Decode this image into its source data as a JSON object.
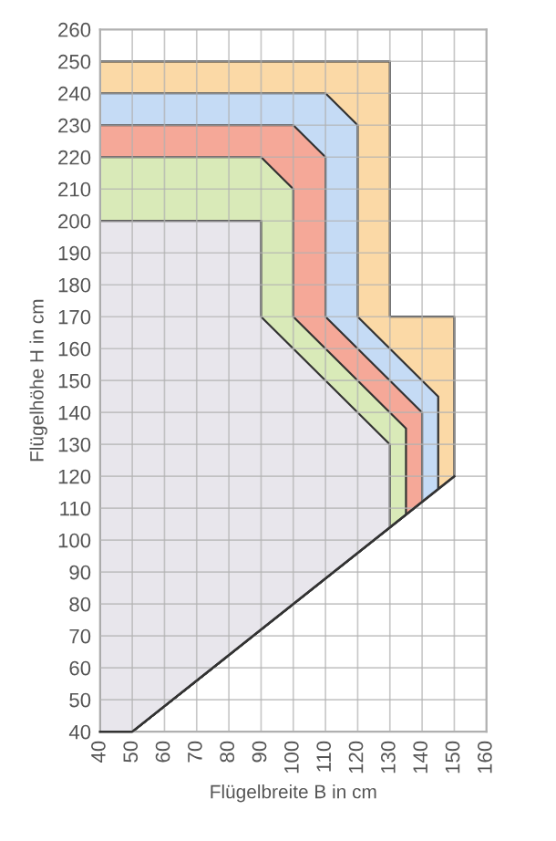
{
  "chart_data": {
    "type": "area",
    "xlabel": "Flügelbreite B in cm",
    "ylabel": "Flügelhöhe H in cm",
    "xlim": [
      40,
      160
    ],
    "xticks": [
      40,
      50,
      60,
      70,
      80,
      90,
      100,
      110,
      120,
      130,
      140,
      150,
      160
    ],
    "ylim": [
      40,
      260
    ],
    "yticks": [
      40,
      50,
      60,
      70,
      80,
      90,
      100,
      110,
      120,
      130,
      140,
      150,
      160,
      170,
      180,
      190,
      200,
      210,
      220,
      230,
      240,
      250,
      260
    ],
    "grid": true,
    "legend": false,
    "series": [
      {
        "color": "#fbd9a6",
        "x": [
          40,
          130,
          130,
          150,
          150
        ],
        "values": [
          250,
          250,
          170,
          170,
          120
        ]
      },
      {
        "color": "#c5dbf5",
        "x": [
          40,
          110,
          120,
          120,
          145,
          145
        ],
        "values": [
          240,
          240,
          230,
          170,
          145,
          116
        ]
      },
      {
        "color": "#f5a898",
        "x": [
          40,
          100,
          110,
          110,
          140,
          140
        ],
        "values": [
          230,
          230,
          220,
          170,
          140,
          112
        ]
      },
      {
        "color": "#d9eab8",
        "x": [
          40,
          90,
          100,
          100,
          135,
          135
        ],
        "values": [
          220,
          220,
          210,
          170,
          135,
          108
        ]
      },
      {
        "color": "#e8e6ec",
        "x": [
          40,
          90,
          90,
          130,
          130
        ],
        "values": [
          200,
          200,
          170,
          130,
          104
        ]
      },
      {
        "type": "line",
        "color": "#333333",
        "x": [
          40,
          50,
          150
        ],
        "values": [
          40,
          40,
          120
        ]
      }
    ]
  }
}
